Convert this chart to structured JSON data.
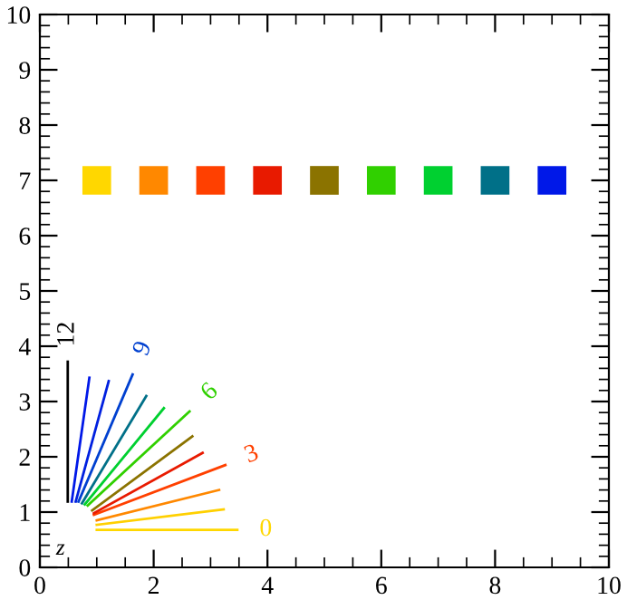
{
  "chart_data": {
    "type": "line",
    "xlim": [
      0,
      10
    ],
    "ylim": [
      0,
      10
    ],
    "xticks": [
      0,
      2,
      4,
      6,
      8,
      10
    ],
    "yticks": [
      0,
      1,
      2,
      3,
      4,
      5,
      6,
      7,
      8,
      9,
      10
    ],
    "grid": false,
    "series": [
      {
        "type": "scatter",
        "marker": "square",
        "x": [
          1,
          2,
          3,
          4,
          5,
          6,
          7,
          8,
          9
        ],
        "values": [
          7,
          7,
          7,
          7,
          7,
          7,
          7,
          7,
          7
        ],
        "colors": [
          "#ffd700",
          "#ff8800",
          "#ff4000",
          "#e81a00",
          "#8b7300",
          "#30d000",
          "#00d030",
          "#007088",
          "#0018e8"
        ]
      },
      {
        "name": "0",
        "color": "#ffd700",
        "x": [
          1.0,
          3.47
        ],
        "values": [
          0.68,
          0.68
        ]
      },
      {
        "color": "#ffd000",
        "x": [
          1.0,
          3.23
        ],
        "values": [
          0.77,
          1.05
        ]
      },
      {
        "color": "#ff8800",
        "x": [
          1.0,
          3.15
        ],
        "values": [
          0.85,
          1.4
        ]
      },
      {
        "name": "3",
        "color": "#ff4000",
        "x": [
          0.95,
          3.26
        ],
        "values": [
          0.95,
          1.85
        ]
      },
      {
        "color": "#e81a00",
        "x": [
          0.95,
          2.86
        ],
        "values": [
          0.98,
          2.07
        ]
      },
      {
        "color": "#8b7300",
        "x": [
          0.92,
          2.68
        ],
        "values": [
          1.03,
          2.37
        ]
      },
      {
        "name": "6",
        "color": "#30d000",
        "x": [
          0.84,
          2.63
        ],
        "values": [
          1.12,
          2.82
        ]
      },
      {
        "color": "#00d030",
        "x": [
          0.79,
          2.18
        ],
        "values": [
          1.14,
          2.88
        ]
      },
      {
        "color": "#007088",
        "x": [
          0.74,
          1.87
        ],
        "values": [
          1.16,
          3.1
        ]
      },
      {
        "name": "9",
        "color": "#0040d0",
        "x": [
          0.68,
          1.63
        ],
        "values": [
          1.19,
          3.49
        ]
      },
      {
        "color": "#0020e0",
        "x": [
          0.63,
          1.21
        ],
        "values": [
          1.19,
          3.37
        ]
      },
      {
        "color": "#0018e8",
        "x": [
          0.56,
          0.87
        ],
        "values": [
          1.19,
          3.43
        ]
      },
      {
        "name": "12",
        "color": "#000000",
        "x": [
          0.49,
          0.49
        ],
        "values": [
          1.19,
          3.72
        ]
      }
    ],
    "annotations": [
      "z"
    ]
  }
}
